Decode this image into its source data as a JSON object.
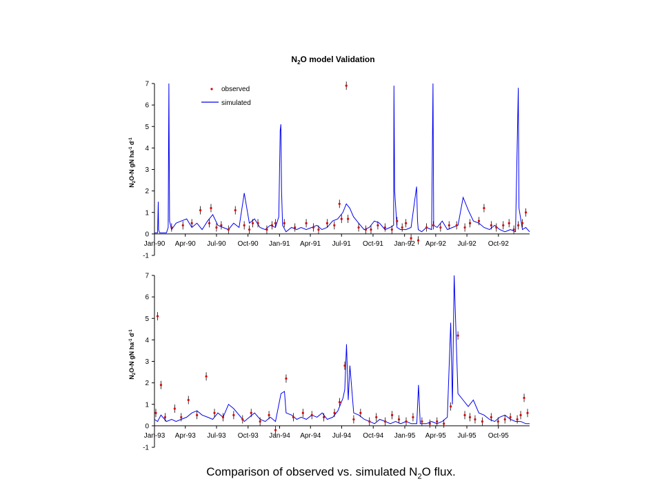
{
  "figure": {
    "title_main": "N",
    "title_sub": "2",
    "title_rest": "O model Validation",
    "caption_main": "Comparison of observed vs. simulated N",
    "caption_sub": "2",
    "caption_rest": "O flux."
  },
  "colors": {
    "simulated": "#0000ee",
    "observed": "#dd0000",
    "axis": "#000000"
  },
  "chart_data": [
    {
      "type": "line",
      "title": "N2O model Validation",
      "ylabel_parts": [
        "N",
        "2",
        "O-N gN ha",
        "-1",
        " d",
        "-1"
      ],
      "ylim": [
        -1,
        7
      ],
      "yticks": [
        -1,
        0,
        1,
        2,
        3,
        4,
        5,
        6,
        7
      ],
      "xlim": [
        "1990-01-01",
        "1992-12-31"
      ],
      "x_tick_labels": [
        {
          "date": "1990-01-01",
          "label": "Jan-90"
        },
        {
          "date": "1990-04-01",
          "label": "Apr-90"
        },
        {
          "date": "1990-07-01",
          "label": "Jul-90"
        },
        {
          "date": "1990-10-01",
          "label": "Oct-90"
        },
        {
          "date": "1991-01-01",
          "label": "Jan-91"
        },
        {
          "date": "1991-04-01",
          "label": "Apr-91"
        },
        {
          "date": "1991-07-01",
          "label": "Jul-91"
        },
        {
          "date": "1991-10-01",
          "label": "Oct-91"
        },
        {
          "date": "1992-01-01",
          "label": "Jan-92"
        },
        {
          "date": "1992-04-01",
          "label": "Apr-92"
        },
        {
          "date": "1992-07-01",
          "label": "Jul-92"
        },
        {
          "date": "1992-10-01",
          "label": "Oct-92"
        }
      ],
      "legend": {
        "position": "top-left",
        "entries": [
          "observed",
          "simulated"
        ]
      },
      "series": [
        {
          "name": "simulated",
          "style": "line",
          "x": [
            "1990-01-01",
            "1990-01-10",
            "1990-01-12",
            "1990-01-13",
            "1990-01-16",
            "1990-02-05",
            "1990-02-10",
            "1990-02-11",
            "1990-02-12",
            "1990-02-14",
            "1990-02-20",
            "1990-03-05",
            "1990-03-20",
            "1990-04-05",
            "1990-04-20",
            "1990-05-05",
            "1990-05-20",
            "1990-06-05",
            "1990-06-20",
            "1990-07-05",
            "1990-07-20",
            "1990-08-05",
            "1990-08-20",
            "1990-09-05",
            "1990-09-20",
            "1990-10-05",
            "1990-10-20",
            "1990-11-05",
            "1990-11-20",
            "1990-12-05",
            "1990-12-20",
            "1990-12-30",
            "1991-01-03",
            "1991-01-05",
            "1991-01-07",
            "1991-01-10",
            "1991-01-20",
            "1991-02-05",
            "1991-02-20",
            "1991-03-05",
            "1991-03-20",
            "1991-04-05",
            "1991-04-20",
            "1991-05-05",
            "1991-05-20",
            "1991-06-05",
            "1991-06-20",
            "1991-07-05",
            "1991-07-15",
            "1991-07-25",
            "1991-08-05",
            "1991-08-20",
            "1991-09-05",
            "1991-09-20",
            "1991-10-05",
            "1991-10-20",
            "1991-11-05",
            "1991-11-20",
            "1991-11-30",
            "1991-12-01",
            "1991-12-03",
            "1991-12-10",
            "1991-12-20",
            "1992-01-05",
            "1992-01-20",
            "1992-02-05",
            "1992-02-08",
            "1992-02-10",
            "1992-02-20",
            "1992-03-05",
            "1992-03-20",
            "1992-03-24",
            "1992-03-26",
            "1992-04-05",
            "1992-04-20",
            "1992-05-05",
            "1992-05-20",
            "1992-06-05",
            "1992-06-20",
            "1992-07-05",
            "1992-07-20",
            "1992-08-05",
            "1992-08-20",
            "1992-09-05",
            "1992-09-20",
            "1992-10-05",
            "1992-10-20",
            "1992-11-05",
            "1992-11-20",
            "1992-11-28",
            "1992-11-30",
            "1992-12-10",
            "1992-12-20",
            "1992-12-31"
          ],
          "y": [
            0.05,
            0.05,
            1.5,
            0.2,
            0.05,
            0.05,
            0.3,
            3.7,
            7.0,
            0.6,
            0.2,
            0.5,
            0.6,
            0.7,
            0.3,
            0.5,
            0.2,
            0.6,
            0.9,
            0.4,
            0.3,
            0.2,
            0.5,
            0.3,
            1.9,
            0.5,
            0.7,
            0.3,
            0.2,
            0.4,
            0.3,
            0.8,
            4.8,
            5.1,
            2.0,
            0.4,
            0.1,
            0.3,
            0.2,
            0.3,
            0.2,
            0.3,
            0.4,
            0.2,
            0.3,
            0.6,
            0.7,
            1.0,
            1.4,
            1.2,
            0.8,
            0.5,
            0.2,
            0.3,
            0.6,
            0.5,
            0.2,
            0.3,
            0.4,
            6.9,
            2.0,
            0.3,
            0.2,
            0.2,
            0.3,
            2.2,
            0.6,
            0.2,
            0.1,
            0.3,
            0.2,
            7.0,
            0.4,
            0.3,
            0.6,
            0.2,
            0.3,
            0.4,
            1.7,
            1.1,
            0.6,
            0.5,
            0.3,
            0.2,
            0.4,
            0.2,
            0.1,
            0.2,
            0.1,
            6.8,
            1.2,
            0.2,
            0.3,
            0.1
          ]
        },
        {
          "name": "observed",
          "style": "markers",
          "x": [
            "1990-02-20",
            "1990-03-25",
            "1990-04-20",
            "1990-05-15",
            "1990-06-10",
            "1990-06-15",
            "1990-07-01",
            "1990-07-15",
            "1990-08-05",
            "1990-08-25",
            "1990-09-20",
            "1990-10-05",
            "1990-10-15",
            "1990-10-30",
            "1990-11-25",
            "1990-12-10",
            "1990-12-20",
            "1991-01-15",
            "1991-02-15",
            "1991-03-20",
            "1991-04-10",
            "1991-04-25",
            "1991-05-20",
            "1991-06-10",
            "1991-06-25",
            "1991-07-01",
            "1991-07-15",
            "1991-07-20",
            "1991-08-20",
            "1991-09-10",
            "1991-09-25",
            "1991-10-15",
            "1991-11-05",
            "1991-11-25",
            "1991-12-10",
            "1991-12-25",
            "1992-01-05",
            "1992-01-20",
            "1992-02-10",
            "1992-03-05",
            "1992-03-25",
            "1992-04-15",
            "1992-05-10",
            "1992-06-01",
            "1992-06-25",
            "1992-07-10",
            "1992-08-05",
            "1992-08-20",
            "1992-09-10",
            "1992-09-25",
            "1992-10-15",
            "1992-11-01",
            "1992-11-15",
            "1992-11-28",
            "1992-12-10",
            "1992-12-20"
          ],
          "y": [
            0.3,
            0.4,
            0.5,
            1.1,
            0.5,
            1.2,
            0.3,
            0.4,
            0.2,
            1.1,
            0.4,
            0.2,
            0.5,
            0.5,
            0.2,
            0.4,
            0.5,
            0.5,
            0.3,
            0.5,
            0.3,
            0.2,
            0.5,
            0.4,
            1.4,
            0.7,
            6.9,
            0.7,
            0.3,
            0.2,
            0.2,
            0.4,
            0.3,
            0.2,
            0.6,
            0.3,
            0.5,
            -0.2,
            -0.3,
            0.3,
            0.4,
            0.3,
            0.4,
            0.4,
            0.3,
            0.5,
            0.6,
            1.2,
            0.4,
            0.3,
            0.4,
            0.5,
            0.2,
            0.4,
            0.5,
            1.0
          ]
        }
      ]
    },
    {
      "type": "line",
      "title": "",
      "ylabel_parts": [
        "N",
        "2",
        "O-N gN ha",
        "-1",
        " d",
        "-1"
      ],
      "ylim": [
        -1,
        7
      ],
      "yticks": [
        -1,
        0,
        1,
        2,
        3,
        4,
        5,
        6,
        7
      ],
      "xlim": [
        "1993-01-01",
        "1995-12-31"
      ],
      "x_tick_labels": [
        {
          "date": "1993-01-01",
          "label": "Jan-93"
        },
        {
          "date": "1993-04-01",
          "label": "Apr-93"
        },
        {
          "date": "1993-07-01",
          "label": "Jul-93"
        },
        {
          "date": "1993-10-01",
          "label": "Oct-93"
        },
        {
          "date": "1994-01-01",
          "label": "Jan-94"
        },
        {
          "date": "1994-04-01",
          "label": "Apr-94"
        },
        {
          "date": "1994-07-01",
          "label": "Jul-94"
        },
        {
          "date": "1994-10-01",
          "label": "Oct-94"
        },
        {
          "date": "1995-01-01",
          "label": "Jan-95"
        },
        {
          "date": "1995-04-01",
          "label": "Apr-95"
        },
        {
          "date": "1995-07-01",
          "label": "Jul-95"
        },
        {
          "date": "1995-10-01",
          "label": "Oct-95"
        }
      ],
      "series": [
        {
          "name": "simulated",
          "style": "line",
          "x": [
            "1993-01-01",
            "1993-01-10",
            "1993-01-20",
            "1993-02-05",
            "1993-02-20",
            "1993-03-05",
            "1993-03-20",
            "1993-04-05",
            "1993-04-20",
            "1993-05-05",
            "1993-05-20",
            "1993-06-05",
            "1993-06-20",
            "1993-07-05",
            "1993-07-20",
            "1993-08-05",
            "1993-08-20",
            "1993-09-05",
            "1993-09-20",
            "1993-10-05",
            "1993-10-20",
            "1993-11-05",
            "1993-11-20",
            "1993-12-05",
            "1993-12-20",
            "1994-01-05",
            "1994-01-15",
            "1994-01-20",
            "1994-02-05",
            "1994-02-20",
            "1994-03-05",
            "1994-03-20",
            "1994-04-05",
            "1994-04-20",
            "1994-05-05",
            "1994-05-20",
            "1994-06-05",
            "1994-06-20",
            "1994-07-05",
            "1994-07-10",
            "1994-07-15",
            "1994-07-20",
            "1994-07-25",
            "1994-08-05",
            "1994-08-20",
            "1994-09-05",
            "1994-09-20",
            "1994-10-05",
            "1994-10-20",
            "1994-11-05",
            "1994-11-20",
            "1994-12-05",
            "1994-12-20",
            "1995-01-05",
            "1995-01-20",
            "1995-02-05",
            "1995-02-10",
            "1995-02-15",
            "1995-03-05",
            "1995-03-20",
            "1995-04-05",
            "1995-04-20",
            "1995-05-05",
            "1995-05-15",
            "1995-05-20",
            "1995-05-25",
            "1995-06-05",
            "1995-06-20",
            "1995-07-05",
            "1995-07-20",
            "1995-08-05",
            "1995-08-20",
            "1995-09-05",
            "1995-09-20",
            "1995-10-05",
            "1995-10-20",
            "1995-11-05",
            "1995-11-20",
            "1995-12-05",
            "1995-12-20",
            "1995-12-31"
          ],
          "y": [
            0.3,
            0.2,
            0.5,
            0.2,
            0.3,
            0.2,
            0.3,
            0.4,
            0.6,
            0.7,
            0.5,
            0.4,
            0.3,
            0.6,
            0.4,
            1.0,
            0.8,
            0.5,
            0.2,
            0.4,
            0.6,
            0.3,
            0.2,
            0.4,
            0.2,
            1.5,
            1.6,
            0.6,
            0.5,
            0.3,
            0.4,
            0.3,
            0.5,
            0.4,
            0.6,
            0.3,
            0.4,
            0.7,
            1.3,
            1.7,
            3.8,
            1.2,
            2.8,
            0.6,
            0.5,
            0.3,
            0.2,
            0.1,
            0.3,
            0.2,
            0.1,
            0.2,
            0.1,
            0.2,
            0.1,
            0.1,
            1.9,
            0.1,
            0.1,
            0.2,
            0.1,
            0.2,
            0.4,
            4.8,
            1.0,
            7.0,
            1.5,
            1.2,
            0.9,
            1.2,
            0.6,
            0.5,
            0.3,
            0.2,
            0.4,
            0.5,
            0.3,
            0.2,
            0.2,
            0.1,
            0.1
          ]
        },
        {
          "name": "observed",
          "style": "markers",
          "x": [
            "1993-01-05",
            "1993-01-10",
            "1993-01-20",
            "1993-02-01",
            "1993-03-01",
            "1993-03-20",
            "1993-04-10",
            "1993-05-05",
            "1993-06-01",
            "1993-06-25",
            "1993-07-20",
            "1993-08-20",
            "1993-09-15",
            "1993-10-10",
            "1993-11-05",
            "1993-12-01",
            "1993-12-20",
            "1994-01-20",
            "1994-02-10",
            "1994-03-10",
            "1994-04-05",
            "1994-05-10",
            "1994-06-10",
            "1994-06-25",
            "1994-07-10",
            "1994-08-05",
            "1994-08-25",
            "1994-09-20",
            "1994-10-10",
            "1994-11-05",
            "1994-11-25",
            "1994-12-15",
            "1995-01-05",
            "1995-01-25",
            "1995-02-20",
            "1995-03-15",
            "1995-04-05",
            "1995-04-25",
            "1995-05-15",
            "1995-06-05",
            "1995-06-25",
            "1995-07-10",
            "1995-07-25",
            "1995-08-15",
            "1995-09-10",
            "1995-09-30",
            "1995-10-20",
            "1995-11-05",
            "1995-11-25",
            "1995-12-05",
            "1995-12-15",
            "1995-12-25"
          ],
          "y": [
            0.6,
            5.1,
            1.9,
            0.4,
            0.8,
            0.4,
            1.2,
            0.5,
            2.3,
            0.6,
            0.4,
            0.5,
            0.3,
            0.6,
            0.2,
            0.5,
            -0.2,
            2.2,
            0.4,
            0.6,
            0.5,
            0.4,
            0.6,
            1.1,
            2.8,
            0.3,
            0.6,
            0.2,
            0.4,
            0.2,
            0.5,
            0.3,
            0.2,
            0.4,
            0.2,
            0.1,
            0.2,
            0.1,
            0.9,
            4.2,
            0.5,
            0.4,
            0.3,
            0.2,
            0.4,
            0.2,
            0.3,
            0.4,
            0.3,
            0.5,
            1.3,
            0.6
          ]
        }
      ]
    }
  ]
}
